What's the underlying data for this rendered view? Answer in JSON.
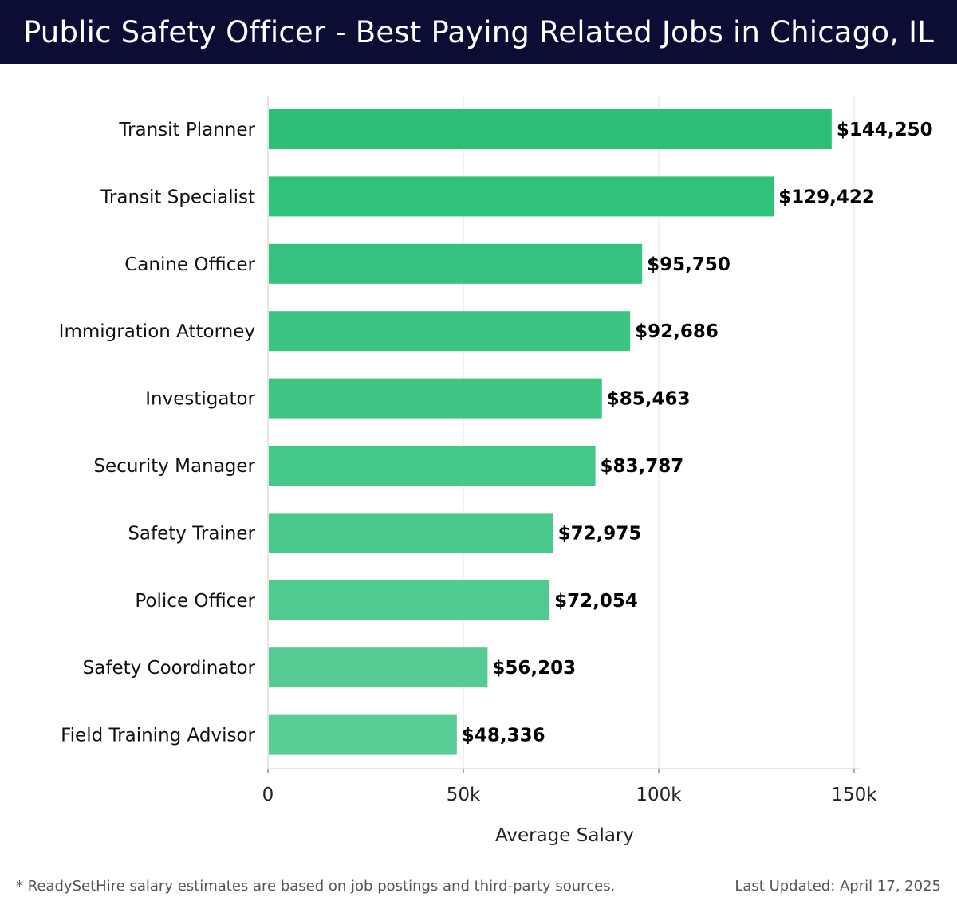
{
  "header": {
    "title": "Public Safety Officer - Best Paying Related Jobs in Chicago, IL"
  },
  "chart_data": {
    "type": "bar",
    "orientation": "horizontal",
    "categories": [
      "Transit Planner",
      "Transit Specialist",
      "Canine Officer",
      "Immigration Attorney",
      "Investigator",
      "Security Manager",
      "Safety Trainer",
      "Police Officer",
      "Safety Coordinator",
      "Field Training Advisor"
    ],
    "values": [
      144250,
      129422,
      95750,
      92686,
      85463,
      83787,
      72975,
      72054,
      56203,
      48336
    ],
    "value_labels": [
      "$144,250",
      "$129,422",
      "$95,750",
      "$92,686",
      "$85,463",
      "$83,787",
      "$72,975",
      "$72,054",
      "$56,203",
      "$48,336"
    ],
    "xlabel": "Average Salary",
    "ylabel": "",
    "xlim": [
      0,
      150000
    ],
    "xticks": [
      0,
      50000,
      100000,
      150000
    ],
    "xtick_labels": [
      "0",
      "50k",
      "100k",
      "150k"
    ],
    "grid": true,
    "bar_color_top": "#2bbf77",
    "bar_color_bottom": "#5acd97"
  },
  "footer": {
    "note": "* ReadySetHire salary estimates are based on job postings and third-party sources.",
    "updated": "Last Updated: April 17, 2025"
  }
}
